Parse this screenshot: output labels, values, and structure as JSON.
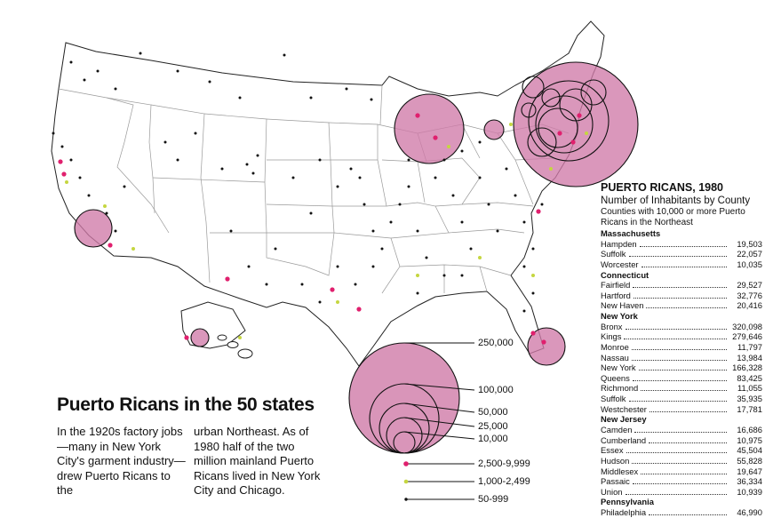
{
  "map": {
    "title": "Puerto Ricans in the 50 states",
    "caption_col1": "In the 1920s factory jobs—many in New York City's garment industry—drew Puerto Ricans to the",
    "caption_col2": "urban Northeast. As of 1980 half of the two million mainland Puerto Ricans lived in New York City and Chicago.",
    "colors": {
      "circle_fill": "#d07aa8",
      "dot_large": "#e0206e",
      "dot_medium": "#c5d640",
      "dot_small": "#111111"
    }
  },
  "legend": {
    "circle_labels": [
      "250,000",
      "100,000",
      "50,000",
      "25,000",
      "10,000"
    ],
    "dot_labels": [
      {
        "label": "2,500-9,999",
        "color": "#e0206e"
      },
      {
        "label": "1,000-2,499",
        "color": "#c5d640"
      },
      {
        "label": "50-999",
        "color": "#111111"
      }
    ]
  },
  "panel": {
    "heading": "PUERTO RICANS, 1980",
    "subheading": "Number of Inhabitants by County",
    "note": "Counties with 10,000 or more Puerto Ricans in the Northeast",
    "states": [
      {
        "name": "Massachusetts",
        "counties": [
          {
            "county": "Hampden",
            "value": "19,503"
          },
          {
            "county": "Suffolk",
            "value": "22,057"
          },
          {
            "county": "Worcester",
            "value": "10,035"
          }
        ]
      },
      {
        "name": "Connecticut",
        "counties": [
          {
            "county": "Fairfield",
            "value": "29,527"
          },
          {
            "county": "Hartford",
            "value": "32,776"
          },
          {
            "county": "New Haven",
            "value": "20,416"
          }
        ]
      },
      {
        "name": "New York",
        "counties": [
          {
            "county": "Bronx",
            "value": "320,098"
          },
          {
            "county": "Kings",
            "value": "279,646"
          },
          {
            "county": "Monroe",
            "value": "11,797"
          },
          {
            "county": "Nassau",
            "value": "13,984"
          },
          {
            "county": "New York",
            "value": "166,328"
          },
          {
            "county": "Queens",
            "value": "83,425"
          },
          {
            "county": "Richmond",
            "value": "11,055"
          },
          {
            "county": "Suffolk",
            "value": "35,935"
          },
          {
            "county": "Westchester",
            "value": "17,781"
          }
        ]
      },
      {
        "name": "New Jersey",
        "counties": [
          {
            "county": "Camden",
            "value": "16,686"
          },
          {
            "county": "Cumberland",
            "value": "10,975"
          },
          {
            "county": "Essex",
            "value": "45,504"
          },
          {
            "county": "Hudson",
            "value": "55,828"
          },
          {
            "county": "Middlesex",
            "value": "19,647"
          },
          {
            "county": "Passaic",
            "value": "36,334"
          },
          {
            "county": "Union",
            "value": "10,939"
          }
        ]
      },
      {
        "name": "Pennsylvania",
        "counties": [
          {
            "county": "Philadelphia",
            "value": "46,990"
          }
        ]
      }
    ]
  }
}
